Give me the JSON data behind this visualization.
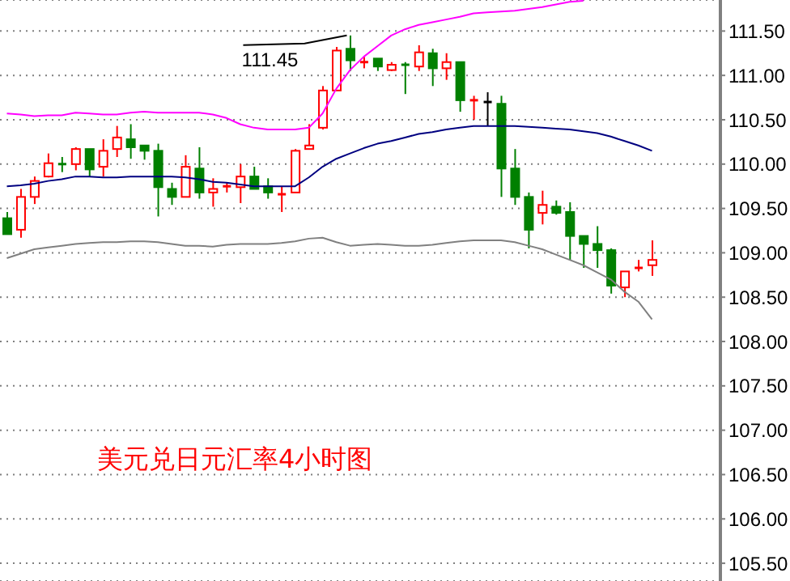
{
  "chart_data": {
    "type": "candlestick",
    "title": "美元兑日元汇率4小时图",
    "categories": [
      null,
      null,
      null,
      null,
      null,
      null,
      null,
      null,
      null,
      null,
      null,
      null,
      null,
      null,
      null,
      null,
      null,
      null,
      null,
      null,
      null,
      null,
      null,
      null,
      null,
      null,
      null,
      null,
      null,
      null,
      null,
      null,
      null,
      null,
      null,
      null,
      null,
      null,
      null,
      null,
      null,
      null,
      null,
      null,
      null,
      null,
      null,
      null
    ],
    "ohlc": [
      [
        109.39,
        109.46,
        109.21,
        109.21
      ],
      [
        109.26,
        109.72,
        109.17,
        109.63
      ],
      [
        109.63,
        109.86,
        109.55,
        109.81
      ],
      [
        109.86,
        110.12,
        109.85,
        110.01
      ],
      [
        110.0,
        110.08,
        109.91,
        109.99
      ],
      [
        110.0,
        110.19,
        109.93,
        110.17
      ],
      [
        110.17,
        110.17,
        109.86,
        109.94
      ],
      [
        109.97,
        110.28,
        109.86,
        110.15
      ],
      [
        110.17,
        110.43,
        110.08,
        110.3
      ],
      [
        110.28,
        110.45,
        110.06,
        110.19
      ],
      [
        110.21,
        110.21,
        110.05,
        110.15
      ],
      [
        110.15,
        110.23,
        109.41,
        109.74
      ],
      [
        109.72,
        109.79,
        109.54,
        109.63
      ],
      [
        109.63,
        110.1,
        109.63,
        109.97
      ],
      [
        109.95,
        110.19,
        109.61,
        109.68
      ],
      [
        109.68,
        109.84,
        109.52,
        109.72
      ],
      [
        109.73,
        109.79,
        109.68,
        109.75
      ],
      [
        109.74,
        110.0,
        109.56,
        109.86
      ],
      [
        109.86,
        109.97,
        109.72,
        109.72
      ],
      [
        109.75,
        109.84,
        109.61,
        109.68
      ],
      [
        109.65,
        109.75,
        109.46,
        109.66
      ],
      [
        109.68,
        110.17,
        109.68,
        110.15
      ],
      [
        110.17,
        110.45,
        110.17,
        110.21
      ],
      [
        110.41,
        110.88,
        110.39,
        110.83
      ],
      [
        110.83,
        111.32,
        110.83,
        111.28
      ],
      [
        111.3,
        111.45,
        111.05,
        111.17
      ],
      [
        111.14,
        111.21,
        111.08,
        111.15
      ],
      [
        111.19,
        111.19,
        111.05,
        111.1
      ],
      [
        111.06,
        111.15,
        111.05,
        111.12
      ],
      [
        111.12,
        111.15,
        110.79,
        111.11
      ],
      [
        111.1,
        111.34,
        111.05,
        111.26
      ],
      [
        111.25,
        111.3,
        110.88,
        111.08
      ],
      [
        111.08,
        111.25,
        110.95,
        111.15
      ],
      [
        111.15,
        111.15,
        110.59,
        110.72
      ],
      [
        110.71,
        110.77,
        110.5,
        110.72
      ],
      [
        110.7,
        110.81,
        110.43,
        110.7
      ],
      [
        110.68,
        110.77,
        109.63,
        109.95
      ],
      [
        109.95,
        110.17,
        109.54,
        109.63
      ],
      [
        109.63,
        109.68,
        109.05,
        109.26
      ],
      [
        109.45,
        109.7,
        109.32,
        109.54
      ],
      [
        109.52,
        109.59,
        109.43,
        109.45
      ],
      [
        109.46,
        109.57,
        108.92,
        109.19
      ],
      [
        109.19,
        109.19,
        108.83,
        109.1
      ],
      [
        109.1,
        109.3,
        108.83,
        109.03
      ],
      [
        109.03,
        109.05,
        108.54,
        108.63
      ],
      [
        108.61,
        108.79,
        108.5,
        108.79
      ],
      [
        108.82,
        108.92,
        108.79,
        108.83
      ],
      [
        108.86,
        109.14,
        108.74,
        108.92
      ]
    ],
    "series": [
      {
        "type": "line",
        "color": "#ff00ff",
        "values": [
          110.57,
          110.56,
          110.54,
          110.55,
          110.55,
          110.58,
          110.57,
          110.56,
          110.56,
          110.58,
          110.59,
          110.58,
          110.58,
          110.58,
          110.58,
          110.56,
          110.52,
          110.45,
          110.41,
          110.39,
          110.39,
          110.39,
          110.41,
          110.57,
          110.85,
          111.06,
          111.21,
          111.33,
          111.45,
          111.52,
          111.57,
          111.6,
          111.63,
          111.66,
          111.7,
          111.71,
          111.72,
          111.73,
          111.75,
          111.77,
          111.8,
          111.83,
          111.84,
          null,
          null,
          null,
          null,
          null
        ]
      },
      {
        "type": "line",
        "color": "#000080",
        "values": [
          109.75,
          109.76,
          109.78,
          109.81,
          109.83,
          109.86,
          109.86,
          109.85,
          109.85,
          109.86,
          109.86,
          109.86,
          109.86,
          109.85,
          109.83,
          109.8,
          109.79,
          109.77,
          109.75,
          109.75,
          109.75,
          109.75,
          109.85,
          109.97,
          110.06,
          110.12,
          110.18,
          110.23,
          110.26,
          110.3,
          110.34,
          110.36,
          110.39,
          110.41,
          110.43,
          110.43,
          110.43,
          110.43,
          110.42,
          110.41,
          110.4,
          110.39,
          110.37,
          110.35,
          110.31,
          110.26,
          110.21,
          110.15
        ]
      },
      {
        "type": "line",
        "color": "#808080",
        "values": [
          108.94,
          108.99,
          109.04,
          109.06,
          109.08,
          109.1,
          109.11,
          109.12,
          109.12,
          109.13,
          109.13,
          109.12,
          109.1,
          109.08,
          109.08,
          109.07,
          109.09,
          109.1,
          109.1,
          109.1,
          109.11,
          109.13,
          109.16,
          109.17,
          109.12,
          109.08,
          109.09,
          109.1,
          109.09,
          109.08,
          109.08,
          109.09,
          109.11,
          109.13,
          109.14,
          109.14,
          109.14,
          109.12,
          109.08,
          109.04,
          108.98,
          108.92,
          108.86,
          108.78,
          108.7,
          108.56,
          108.45,
          108.25
        ]
      }
    ],
    "annotations": [
      "111.45"
    ],
    "ylim": [
      105.3,
      111.85
    ],
    "yticks": [
      {
        "value": 105.5,
        "label": "105.50"
      },
      {
        "value": 106,
        "label": "106.00"
      },
      {
        "value": 106.5,
        "label": "106.50"
      },
      {
        "value": 107,
        "label": "107.00"
      },
      {
        "value": 107.5,
        "label": "107.50"
      },
      {
        "value": 108,
        "label": "108.00"
      },
      {
        "value": 108.5,
        "label": "108.50"
      },
      {
        "value": 109,
        "label": "109.00"
      },
      {
        "value": 109.5,
        "label": "109.50"
      },
      {
        "value": 110,
        "label": "110.00"
      },
      {
        "value": 110.5,
        "label": "110.50"
      },
      {
        "value": 111,
        "label": "111.00"
      },
      {
        "value": 111.5,
        "label": "111.50"
      }
    ],
    "grid": "y"
  }
}
